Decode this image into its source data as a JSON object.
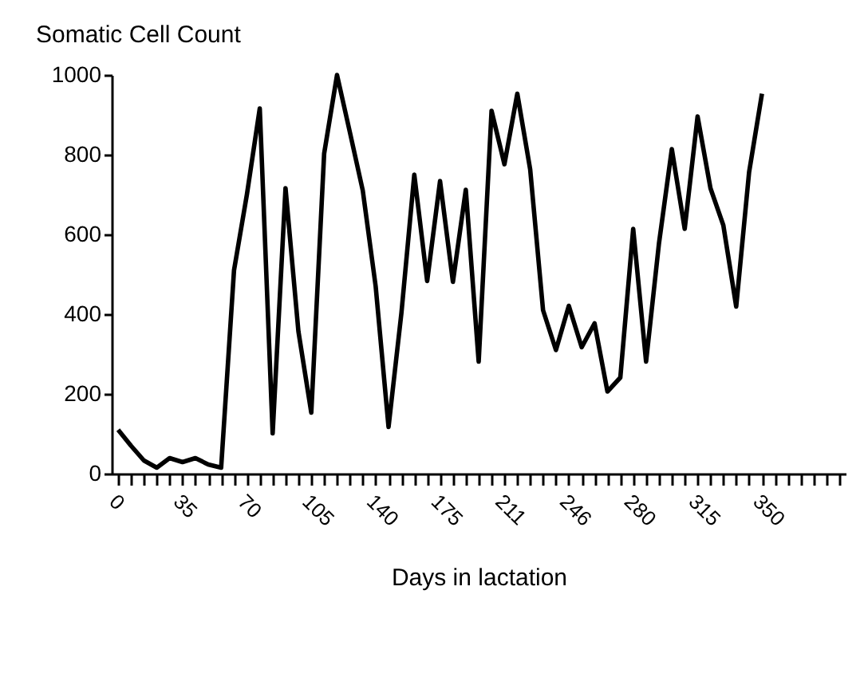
{
  "chart_data": {
    "type": "line",
    "ylabel": "Somatic Cell Count",
    "xlabel": "Days in lactation",
    "categories": [
      "0",
      null,
      null,
      null,
      null,
      "35",
      null,
      null,
      null,
      null,
      "70",
      null,
      null,
      null,
      null,
      "105",
      null,
      null,
      null,
      null,
      "140",
      null,
      null,
      null,
      null,
      "175",
      null,
      null,
      null,
      null,
      "211",
      null,
      null,
      null,
      null,
      "246",
      null,
      null,
      null,
      null,
      "280",
      null,
      null,
      null,
      null,
      "315",
      null,
      null,
      null,
      null,
      "350",
      null,
      null,
      null,
      null,
      null,
      null
    ],
    "series": [
      {
        "color": "#000000",
        "values": [
          110,
          70,
          33,
          15,
          39,
          29,
          39,
          23,
          15,
          510,
          700,
          916,
          101,
          716,
          357,
          153,
          803,
          1000,
          856,
          710,
          470,
          117,
          403,
          750,
          483,
          734,
          481,
          712,
          281,
          910,
          776,
          953,
          763,
          410,
          310,
          421,
          317,
          377,
          206,
          241,
          614,
          281,
          577,
          814,
          614,
          896,
          716,
          623,
          419,
          756,
          953,
          null,
          null,
          null,
          null,
          null,
          null
        ]
      }
    ],
    "ylim": [
      0,
      1000
    ],
    "yticks": [
      0,
      200,
      400,
      600,
      800,
      1000
    ],
    "grid": false,
    "marker": "none",
    "line_style": "solid"
  }
}
